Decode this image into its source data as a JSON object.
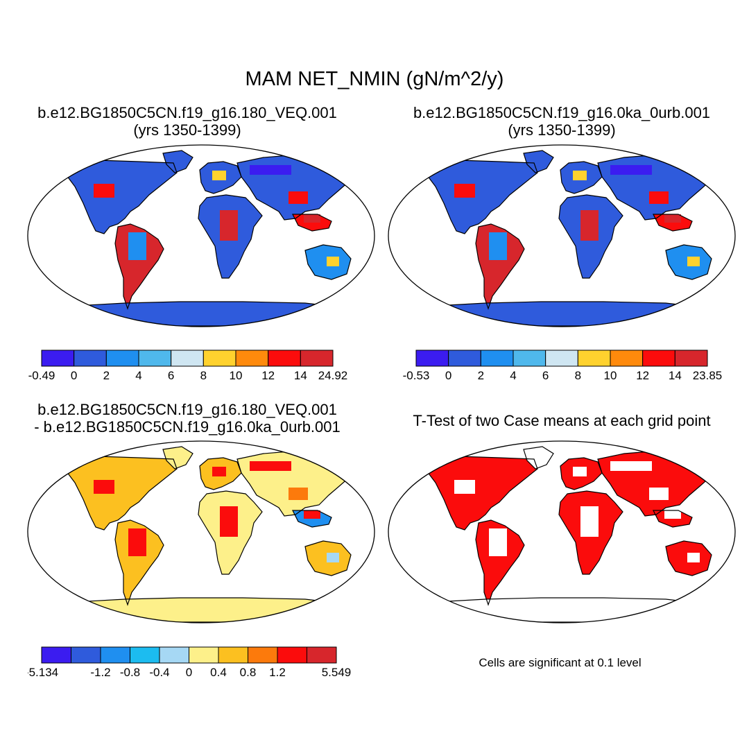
{
  "figure": {
    "main_title": "MAM NET_NMIN (gN/m^2/y)",
    "note": "Cells are significant at 0.1 level"
  },
  "panels": [
    {
      "id": "case1",
      "title_line1": "b.e12.BG1850C5CN.f19_g16.180_VEQ.001",
      "title_line2": "(yrs 1350-1399)",
      "colorbar": {
        "colors": [
          "#3b1cf0",
          "#2f5bdc",
          "#1f8ff0",
          "#4fb8ec",
          "#cfe6f2",
          "#ffd22e",
          "#ff8a0c",
          "#fb0c0c",
          "#d7262c"
        ],
        "labels": [
          "-0.49",
          "0",
          "2",
          "4",
          "6",
          "8",
          "10",
          "12",
          "14",
          "24.92"
        ]
      }
    },
    {
      "id": "case2",
      "title_line1": "b.e12.BG1850C5CN.f19_g16.0ka_0urb.001",
      "title_line2": "(yrs 1350-1399)",
      "colorbar": {
        "colors": [
          "#3b1cf0",
          "#2f5bdc",
          "#1f8ff0",
          "#4fb8ec",
          "#cfe6f2",
          "#ffd22e",
          "#ff8a0c",
          "#fb0c0c",
          "#d7262c"
        ],
        "labels": [
          "-0.53",
          "0",
          "2",
          "4",
          "6",
          "8",
          "10",
          "12",
          "14",
          "23.85"
        ]
      }
    },
    {
      "id": "diff",
      "title_line1": "b.e12.BG1850C5CN.f19_g16.180_VEQ.001",
      "title_line2": "- b.e12.BG1850C5CN.f19_g16.0ka_0urb.001",
      "colorbar": {
        "colors": [
          "#3b1cf0",
          "#2f5bdc",
          "#1f8ff0",
          "#1cbcf0",
          "#a6d8f4",
          "#fdf08a",
          "#fcc020",
          "#fc7a0c",
          "#fb0c0c",
          "#d7262c"
        ],
        "labels": [
          "-5.134",
          "",
          "-1.2",
          "-0.8",
          "-0.4",
          "0",
          "0.4",
          "0.8",
          "1.2",
          "",
          "5.549"
        ]
      }
    },
    {
      "id": "ttest",
      "title_line1": "T-Test of two Case means at each grid point",
      "title_line2": "",
      "significant_color": "#fb0c0c"
    }
  ]
}
